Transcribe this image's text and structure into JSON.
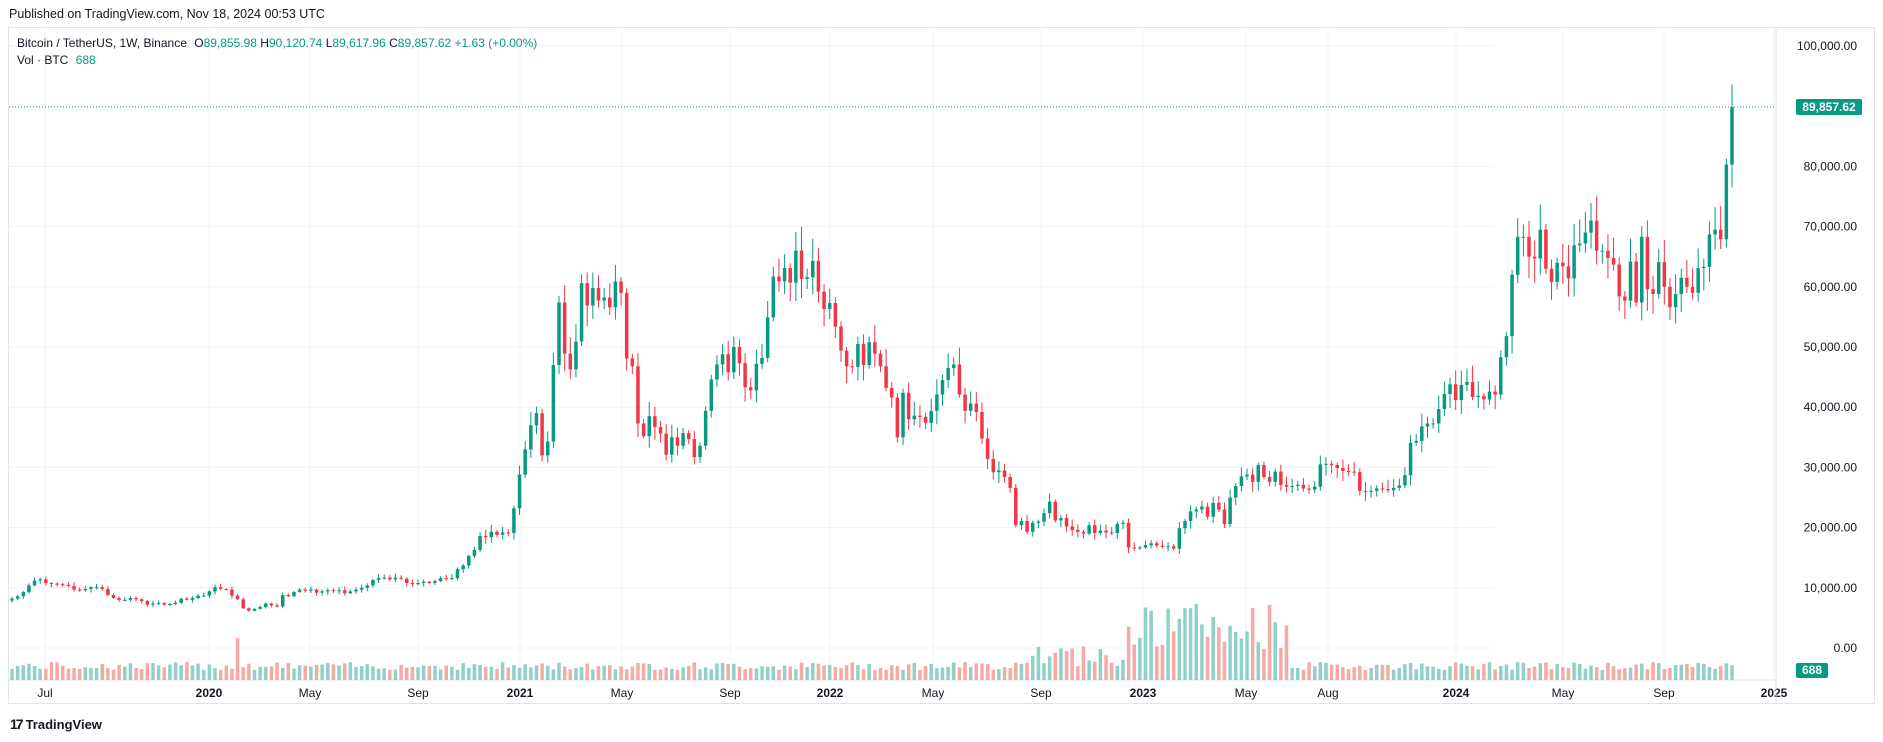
{
  "header": {
    "published": "Published on TradingView.com, Nov 18, 2024 00:53 UTC"
  },
  "legend": {
    "symbol": "Bitcoin / TetherUS, 1W, Binance",
    "o_label": "O",
    "o_value": "89,855.98",
    "h_label": "H",
    "h_value": "90,120.74",
    "l_label": "L",
    "l_value": "89,617.96",
    "c_label": "C",
    "c_value": "89,857.62",
    "change": "+1.63 (+0.00%)",
    "vol_label": "Vol · BTC",
    "vol_value": "688"
  },
  "footer": {
    "brand": "TradingView",
    "brand_icon": "tradingview-logo-icon"
  },
  "colors": {
    "up": "#089981",
    "down": "#f23645",
    "up_vol": "#8fd1c7",
    "down_vol": "#f7a9a7",
    "grid": "#f0f3fa"
  },
  "chart_data": {
    "type": "candlestick",
    "title": "Bitcoin / TetherUS, 1W, Binance",
    "ylim": [
      0,
      100000
    ],
    "y_ticks": [
      "100,000.00",
      "90,000.00",
      "80,000.00",
      "70,000.00",
      "60,000.00",
      "50,000.00",
      "40,000.00",
      "30,000.00",
      "20,000.00",
      "10,000.00",
      "0.00"
    ],
    "x_ticks": [
      "Jul",
      "2020",
      "May",
      "Sep",
      "2021",
      "May",
      "Sep",
      "2022",
      "May",
      "Sep",
      "2023",
      "May",
      "Aug",
      "2024",
      "May",
      "Sep",
      "2025"
    ],
    "last_price": 89857.62,
    "last_price_label": "89,857.62",
    "last_volume_label": "688",
    "weekly_close": [
      8200,
      8600,
      9300,
      10400,
      11200,
      11400,
      10800,
      10700,
      10600,
      10500,
      10300,
      9700,
      9600,
      9800,
      10100,
      10100,
      9800,
      8800,
      8300,
      8000,
      8000,
      8300,
      8100,
      7800,
      7200,
      7400,
      7500,
      7200,
      7300,
      7500,
      8200,
      8000,
      8300,
      8700,
      8700,
      9400,
      10100,
      9800,
      9700,
      8700,
      8100,
      6600,
      6200,
      6500,
      6800,
      7400,
      7100,
      6900,
      8800,
      8600,
      9300,
      9700,
      9500,
      9700,
      9200,
      9400,
      9600,
      9500,
      9600,
      9100,
      9400,
      9700,
      10000,
      10400,
      11300,
      11600,
      11700,
      11400,
      11700,
      11500,
      10800,
      10600,
      10800,
      11000,
      10800,
      11100,
      11600,
      11500,
      11600,
      13100,
      13700,
      15300,
      16300,
      18600,
      18400,
      19300,
      18800,
      19200,
      19100,
      23200,
      28800,
      33000,
      37000,
      39000,
      32000,
      34300,
      47000,
      57400,
      48900,
      46300,
      50900,
      60600,
      56900,
      59800,
      57700,
      58200,
      56600,
      60900,
      59000,
      48100,
      46800,
      37300,
      35200,
      38500,
      36700,
      35600,
      32100,
      35000,
      33600,
      35700,
      34700,
      31700,
      33600,
      39400,
      44600,
      47100,
      48800,
      45800,
      50000,
      47300,
      43300,
      42800,
      47200,
      48200,
      54900,
      61700,
      60900,
      63100,
      60700,
      66000,
      61300,
      61600,
      64300,
      59200,
      56300,
      57300,
      53400,
      49400,
      46800,
      46700,
      50500,
      47000,
      50800,
      48900,
      46800,
      43200,
      41600,
      35000,
      42400,
      38000,
      38600,
      38400,
      37400,
      39400,
      42100,
      44500,
      46500,
      47100,
      42100,
      39400,
      40600,
      39200,
      34800,
      31400,
      29200,
      29500,
      28400,
      26600,
      20400,
      21100,
      19300,
      20800,
      21000,
      22400,
      24300,
      21200,
      21600,
      20200,
      19600,
      19300,
      19000,
      20400,
      19100,
      19500,
      19200,
      19100,
      20600,
      20800,
      16700,
      16600,
      16700,
      17100,
      17400,
      17000,
      16800,
      16900,
      16500,
      19900,
      21100,
      22700,
      23000,
      23500,
      21800,
      24100,
      23000,
      20600,
      25000,
      26900,
      28500,
      28800,
      27600,
      30400,
      28400,
      27600,
      29300,
      27100,
      26800,
      26900,
      27100,
      26500,
      26300,
      26800,
      30500,
      30600,
      30400,
      29900,
      29400,
      29300,
      29200,
      26100,
      26000,
      26100,
      26500,
      26400,
      26200,
      26600,
      27000,
      28700,
      34100,
      34400,
      36800,
      37300,
      37300,
      39700,
      42200,
      43800,
      41200,
      43700,
      44200,
      41700,
      41900,
      41300,
      42600,
      42100,
      48300,
      51800,
      62000,
      68300,
      68300,
      65000,
      64700,
      69500,
      63000,
      60800,
      64000,
      63400,
      61400,
      66900,
      67200,
      69000,
      71000,
      66000,
      66000,
      64800,
      63700,
      58400,
      57700,
      64200,
      57400,
      68300,
      59600,
      58800,
      64100,
      60000,
      56600,
      58800,
      61500,
      60000,
      59000,
      63100,
      63300,
      68700,
      69500,
      67900,
      80300,
      89857
    ]
  }
}
